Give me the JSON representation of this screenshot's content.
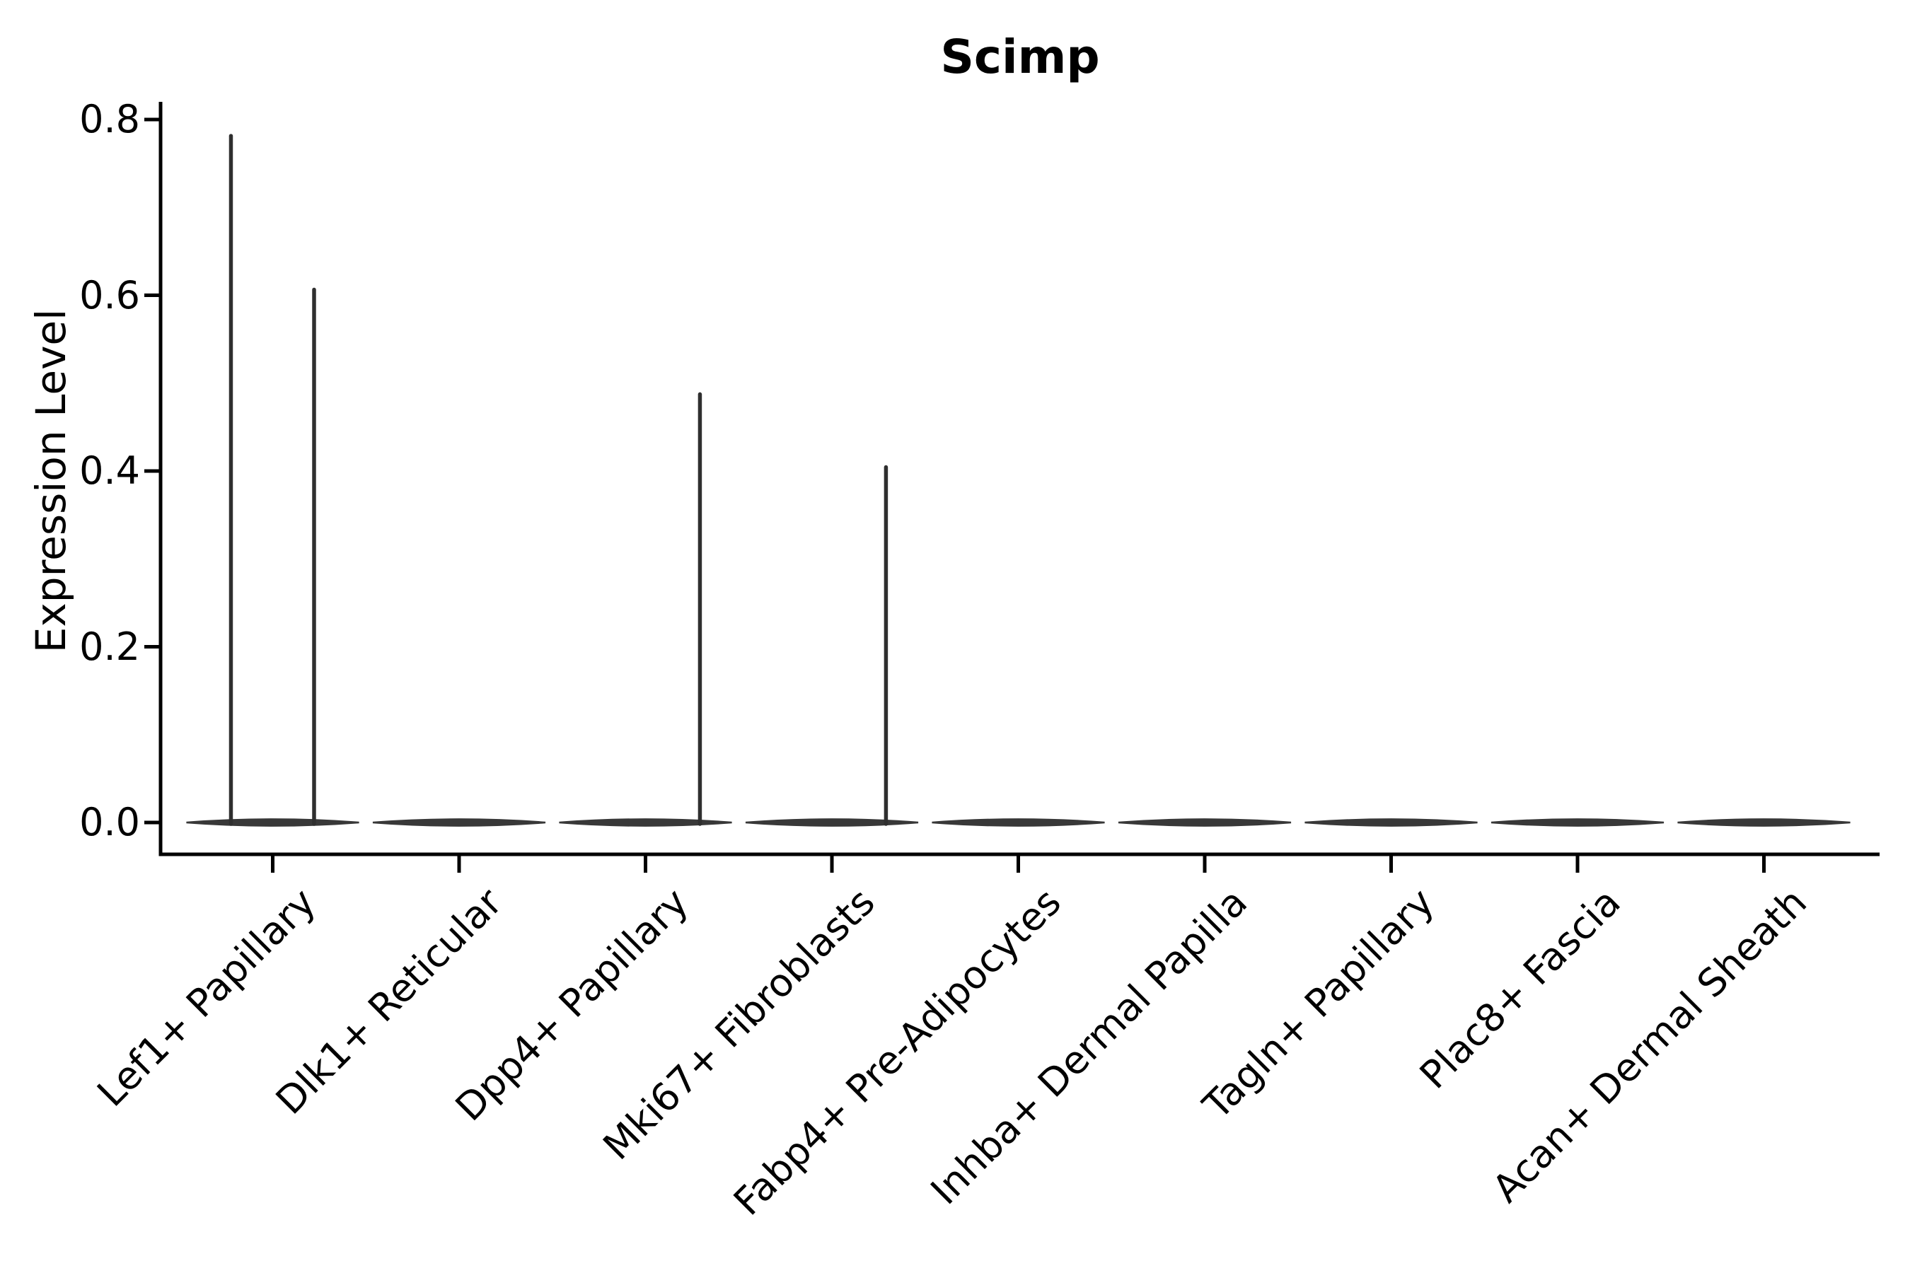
{
  "chart_data": {
    "type": "violin",
    "title": "Scimp",
    "xlabel": "",
    "ylabel": "Expression Level",
    "ylim": [
      0,
      0.8
    ],
    "grid": false,
    "legend": null,
    "ytick_values": [
      0.0,
      0.2,
      0.4,
      0.6,
      0.8
    ],
    "ytick_labels": [
      "0.0",
      "0.2",
      "0.4",
      "0.6",
      "0.8"
    ],
    "categories": [
      "Lef1+ Papillary",
      "Dlk1+ Reticular",
      "Dpp4+ Papillary",
      "Mki67+ Fibroblasts",
      "Fabp4+ Pre-Adipocytes",
      "Inhba+ Dermal Papilla",
      "Tagln+ Papillary",
      "Plac8+ Fascia",
      "Acan+ Dermal Sheath"
    ],
    "violins": [
      {
        "category": "Lef1+ Papillary",
        "base_at_zero": true,
        "spikes": [
          {
            "offset_frac": -0.224,
            "max_value": 0.783
          },
          {
            "offset_frac": 0.222,
            "max_value": 0.608
          }
        ]
      },
      {
        "category": "Dlk1+ Reticular",
        "base_at_zero": true,
        "spikes": []
      },
      {
        "category": "Dpp4+ Papillary",
        "base_at_zero": true,
        "spikes": [
          {
            "offset_frac": 0.292,
            "max_value": 0.489
          }
        ]
      },
      {
        "category": "Mki67+ Fibroblasts",
        "base_at_zero": true,
        "spikes": [
          {
            "offset_frac": 0.29,
            "max_value": 0.406
          }
        ]
      },
      {
        "category": "Fabp4+ Pre-Adipocytes",
        "base_at_zero": true,
        "spikes": []
      },
      {
        "category": "Inhba+ Dermal Papilla",
        "base_at_zero": true,
        "spikes": []
      },
      {
        "category": "Tagln+ Papillary",
        "base_at_zero": true,
        "spikes": []
      },
      {
        "category": "Plac8+ Fascia",
        "base_at_zero": true,
        "spikes": []
      },
      {
        "category": "Acan+ Dermal Sheath",
        "base_at_zero": true,
        "spikes": []
      }
    ],
    "colors": {
      "spike": "#2f2f2f",
      "violin_base": "#383838",
      "axis": "#000000",
      "text": "#000000"
    }
  }
}
